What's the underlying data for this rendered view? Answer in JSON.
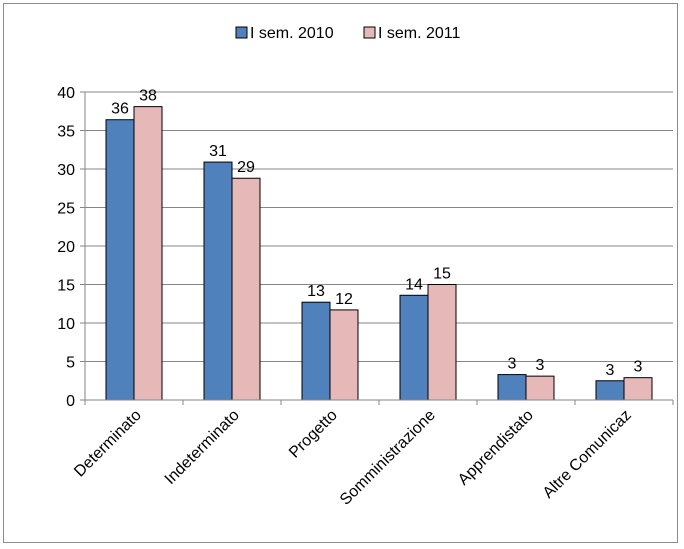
{
  "chart_data": {
    "type": "bar",
    "title": "",
    "xlabel": "",
    "ylabel": "",
    "categories": [
      "Determinato",
      "Indeterminato",
      "Progetto",
      "Somministrazione",
      "Apprendistato",
      "Altre Comunicaz"
    ],
    "series": [
      {
        "name": "I sem. 2010",
        "values": [
          36.4,
          30.9,
          12.7,
          13.6,
          3.3,
          2.5
        ],
        "labels": [
          "36",
          "31",
          "13",
          "14",
          "3",
          "3"
        ],
        "color": "#4f81bd"
      },
      {
        "name": "I sem. 2011",
        "values": [
          38.1,
          28.8,
          11.7,
          15.0,
          3.1,
          2.9
        ],
        "labels": [
          "38",
          "29",
          "12",
          "15",
          "3",
          "3"
        ],
        "color": "#e6b9b8"
      }
    ],
    "ylim": [
      0,
      40
    ],
    "yticks": [
      0,
      5,
      10,
      15,
      20,
      25,
      30,
      35,
      40
    ],
    "grid": true,
    "legend_position": "top"
  }
}
